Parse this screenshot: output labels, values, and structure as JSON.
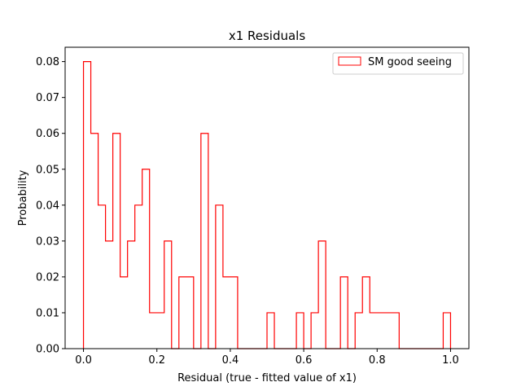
{
  "chart_data": {
    "type": "bar",
    "histtype": "step",
    "title": "x1 Residuals",
    "xlabel": "Residual (true - fitted value of x1)",
    "ylabel": "Probability",
    "xlim": [
      -0.05,
      1.05
    ],
    "ylim": [
      0.0,
      0.084
    ],
    "xticks": [
      0.0,
      0.2,
      0.4,
      0.6,
      0.8,
      1.0
    ],
    "xtick_labels": [
      "0.0",
      "0.2",
      "0.4",
      "0.6",
      "0.8",
      "1.0"
    ],
    "yticks": [
      0.0,
      0.01,
      0.02,
      0.03,
      0.04,
      0.05,
      0.06,
      0.07,
      0.08
    ],
    "ytick_labels": [
      "0.00",
      "0.01",
      "0.02",
      "0.03",
      "0.04",
      "0.05",
      "0.06",
      "0.07",
      "0.08"
    ],
    "grid": false,
    "legend_position": "top-right",
    "bin_start": 0.0,
    "bin_width": 0.02,
    "series": [
      {
        "name": "SM good seeing",
        "color": "#ff0000",
        "values": [
          0.08,
          0.06,
          0.04,
          0.03,
          0.06,
          0.02,
          0.03,
          0.04,
          0.05,
          0.01,
          0.01,
          0.03,
          0.0,
          0.02,
          0.02,
          0.0,
          0.06,
          0.0,
          0.04,
          0.02,
          0.02,
          0.0,
          0.0,
          0.0,
          0.0,
          0.01,
          0.0,
          0.0,
          0.0,
          0.01,
          0.0,
          0.01,
          0.03,
          0.0,
          0.0,
          0.02,
          0.0,
          0.01,
          0.02,
          0.01,
          0.01,
          0.01,
          0.01,
          0.0,
          0.0,
          0.0,
          0.0,
          0.0,
          0.0,
          0.01
        ]
      }
    ]
  }
}
